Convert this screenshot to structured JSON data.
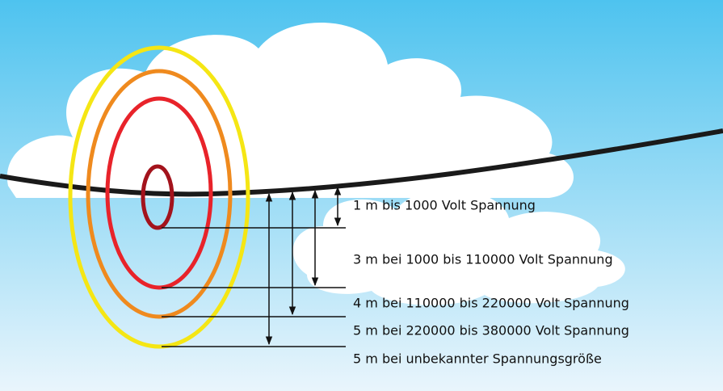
{
  "labels": [
    "1 m bis 1000 Volt Spannung",
    "3 m bei 1000 bis 110000 Volt Spannung",
    "4 m bei 110000 bis 220000 Volt Spannung",
    "5 m bei 220000 bis 380000 Volt Spannung",
    "5 m bei unbekannter Spannungsgröße"
  ]
}
